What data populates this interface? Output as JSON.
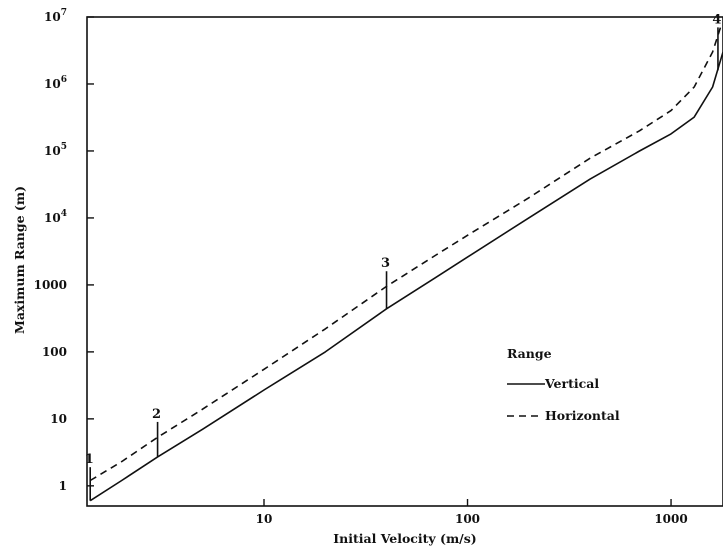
{
  "chart_data": {
    "type": "line",
    "title": "",
    "xlabel": "Initial Velocity (m/s)",
    "ylabel": "Maximum Range (m)",
    "x_scale": "log",
    "y_scale": "log",
    "xlim": [
      1.35,
      1800
    ],
    "ylim": [
      0.5,
      10000000
    ],
    "x_ticks": [
      {
        "value": 10,
        "label": "10"
      },
      {
        "value": 100,
        "label": "100"
      },
      {
        "value": 1000,
        "label": "1000"
      }
    ],
    "y_ticks": [
      {
        "value": 1,
        "label": "1"
      },
      {
        "value": 10,
        "label": "10"
      },
      {
        "value": 100,
        "label": "100"
      },
      {
        "value": 1000,
        "label": "1000"
      },
      {
        "value": 10000,
        "base": "10",
        "exp": "4"
      },
      {
        "value": 100000,
        "base": "10",
        "exp": "5"
      },
      {
        "value": 1000000,
        "base": "10",
        "exp": "6"
      },
      {
        "value": 10000000,
        "base": "10",
        "exp": "7"
      }
    ],
    "legend": {
      "title": "Range",
      "placement": "center-right",
      "entries": [
        {
          "name": "Vertical",
          "style": "solid"
        },
        {
          "name": "Horizontal",
          "style": "dashed"
        }
      ]
    },
    "series": [
      {
        "name": "Vertical",
        "style": "solid",
        "x": [
          1.4,
          2,
          3,
          5,
          10,
          20,
          40,
          70,
          100,
          200,
          400,
          700,
          1000,
          1300,
          1600,
          1800
        ],
        "y": [
          0.6,
          1.2,
          2.7,
          7,
          27,
          100,
          440,
          1300,
          2600,
          10000,
          38000,
          100000,
          180000,
          320000,
          900000,
          3000000
        ]
      },
      {
        "name": "Horizontal",
        "style": "dashed",
        "x": [
          1.4,
          2,
          3,
          5,
          10,
          20,
          40,
          70,
          100,
          200,
          400,
          700,
          1000,
          1300,
          1600,
          1750
        ],
        "y": [
          1.2,
          2.3,
          5.3,
          14,
          55,
          220,
          950,
          2800,
          5500,
          20000,
          78000,
          200000,
          400000,
          900000,
          3000000,
          7000000
        ]
      }
    ],
    "markers": [
      {
        "label": "1",
        "x": 1.4,
        "y_low": 0.6,
        "y_high": 1.9
      },
      {
        "label": "2",
        "x": 3,
        "y_low": 2.7,
        "y_high": 9
      },
      {
        "label": "3",
        "x": 40,
        "y_low": 440,
        "y_high": 1600
      },
      {
        "label": "4",
        "x": 1700,
        "y_low": 1600000,
        "y_high": 7000000
      }
    ]
  }
}
